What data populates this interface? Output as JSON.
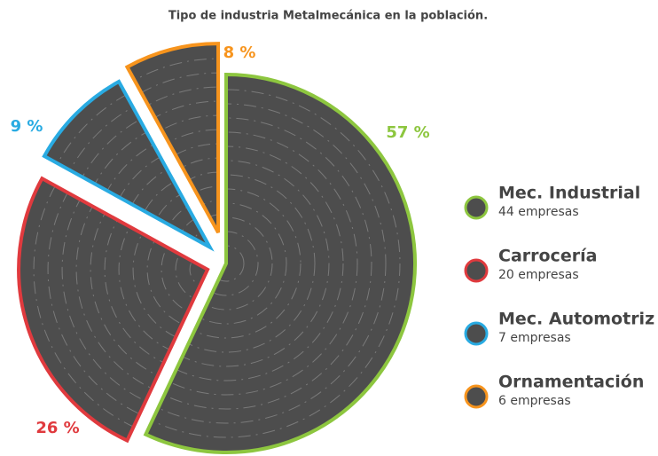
{
  "chart_data": {
    "type": "pie",
    "title": "Tipo de industria Metalmecánica en la población.",
    "categories": [
      "Mec. Industrial",
      "Carrocería",
      "Mec. Automotriz",
      "Ornamentación"
    ],
    "values": [
      57,
      26,
      9,
      8
    ],
    "value_labels": [
      "57 %",
      "26 %",
      "9 %",
      "8 %"
    ],
    "descriptions": [
      "44 empresas",
      "20 empresas",
      "7 empresas",
      "6 empresas"
    ],
    "colors": [
      "#8dc63f",
      "#e03a3e",
      "#29abe2",
      "#f7941d"
    ],
    "slice_fill": "#4d4d4d",
    "legend": "right"
  }
}
